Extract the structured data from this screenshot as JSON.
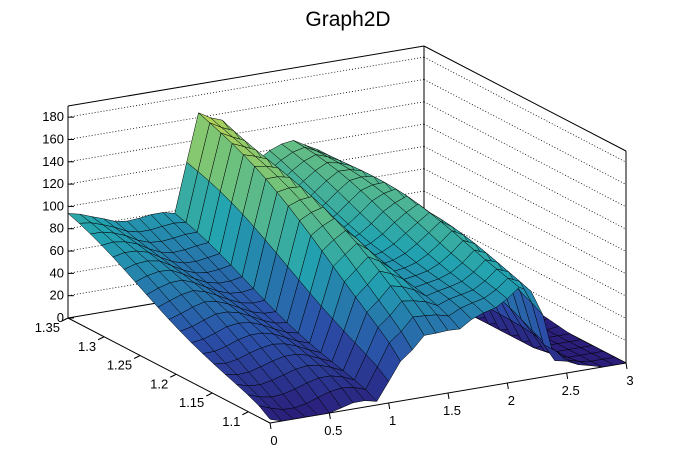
{
  "chart_data": {
    "type": "surface3d",
    "title": "Graph2D",
    "x_axis": {
      "range": [
        0,
        3
      ],
      "ticks": [
        "0",
        "0.5",
        "1",
        "1.5",
        "2",
        "2.5",
        "3"
      ]
    },
    "y_axis": {
      "range": [
        1.07,
        1.35
      ],
      "ticks": [
        "1.1",
        "1.15",
        "1.2",
        "1.25",
        "1.3",
        "1.35"
      ]
    },
    "z_axis": {
      "range": [
        0,
        190
      ],
      "ticks": [
        "0",
        "20",
        "40",
        "60",
        "80",
        "100",
        "120",
        "140",
        "160",
        "180"
      ]
    },
    "grid": "z-gridlines on back walls",
    "palette": "viridis-like (blue → green → yellow)",
    "surface_profile_along_x": {
      "x": [
        0,
        0.3,
        0.6,
        0.9,
        1.1,
        1.3,
        1.6,
        1.9,
        2.1,
        2.25,
        2.4,
        2.6,
        3.0
      ],
      "z_at_y_max": [
        88,
        88,
        80,
        72,
        165,
        160,
        110,
        122,
        118,
        100,
        88,
        0,
        0
      ],
      "z_at_y_min": [
        0,
        0,
        0,
        0,
        40,
        60,
        50,
        70,
        90,
        80,
        10,
        0,
        0
      ]
    },
    "colors": {
      "low": "#2a1e7a",
      "mid": "#2ea7a0",
      "high": "#f8e634",
      "axis": "#000000"
    }
  }
}
